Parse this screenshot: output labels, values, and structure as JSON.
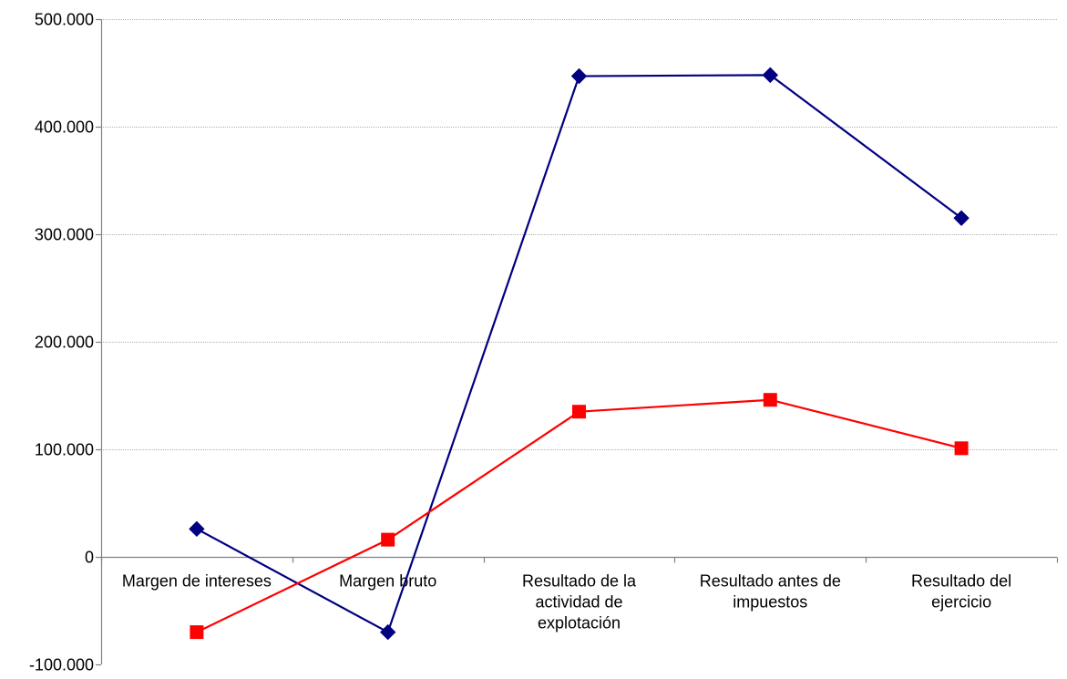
{
  "chart_data": {
    "type": "line",
    "categories": [
      [
        "Margen de intereses"
      ],
      [
        "Margen bruto"
      ],
      [
        "Resultado de la",
        "actividad de",
        "explotación"
      ],
      [
        "Resultado antes de",
        "impuestos"
      ],
      [
        "Resultado del",
        "ejercicio"
      ]
    ],
    "ylim": [
      -100000,
      500000
    ],
    "yticks": [
      -100000,
      0,
      100000,
      200000,
      300000,
      400000,
      500000
    ],
    "ytick_labels": [
      "-100.000",
      "0",
      "100.000",
      "200.000",
      "300.000",
      "400.000",
      "500.000"
    ],
    "grid": true,
    "series": [
      {
        "color": "#000080",
        "marker": "diamond",
        "values": [
          26000,
          -70000,
          447000,
          448000,
          315000
        ]
      },
      {
        "color": "#ff0000",
        "marker": "square",
        "values": [
          -70000,
          16000,
          135000,
          146000,
          101000
        ]
      }
    ]
  }
}
